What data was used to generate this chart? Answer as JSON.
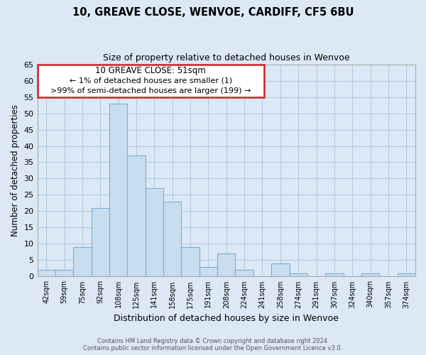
{
  "title": "10, GREAVE CLOSE, WENVOE, CARDIFF, CF5 6BU",
  "subtitle": "Size of property relative to detached houses in Wenvoe",
  "xlabel": "Distribution of detached houses by size in Wenvoe",
  "ylabel": "Number of detached properties",
  "footer_line1": "Contains HM Land Registry data © Crown copyright and database right 2024.",
  "footer_line2": "Contains public sector information licensed under the Open Government Licence v3.0.",
  "bin_labels": [
    "42sqm",
    "59sqm",
    "75sqm",
    "92sqm",
    "108sqm",
    "125sqm",
    "141sqm",
    "158sqm",
    "175sqm",
    "191sqm",
    "208sqm",
    "224sqm",
    "241sqm",
    "258sqm",
    "274sqm",
    "291sqm",
    "307sqm",
    "324sqm",
    "340sqm",
    "357sqm",
    "374sqm"
  ],
  "bar_heights": [
    2,
    2,
    9,
    21,
    53,
    37,
    27,
    23,
    9,
    3,
    7,
    2,
    0,
    4,
    1,
    0,
    1,
    0,
    1,
    0,
    1
  ],
  "bar_color": "#c8ddf0",
  "bar_edge_color": "#7bafd4",
  "ylim": [
    0,
    65
  ],
  "yticks": [
    0,
    5,
    10,
    15,
    20,
    25,
    30,
    35,
    40,
    45,
    50,
    55,
    60,
    65
  ],
  "annotation_title": "10 GREAVE CLOSE: 51sqm",
  "annotation_line1": "← 1% of detached houses are smaller (1)",
  "annotation_line2": ">99% of semi-detached houses are larger (199) →",
  "background_color": "#dce8f5",
  "plot_bg_color": "#dce8f5",
  "grid_color": "#aec8e0",
  "annot_edge_color": "#cc2222"
}
